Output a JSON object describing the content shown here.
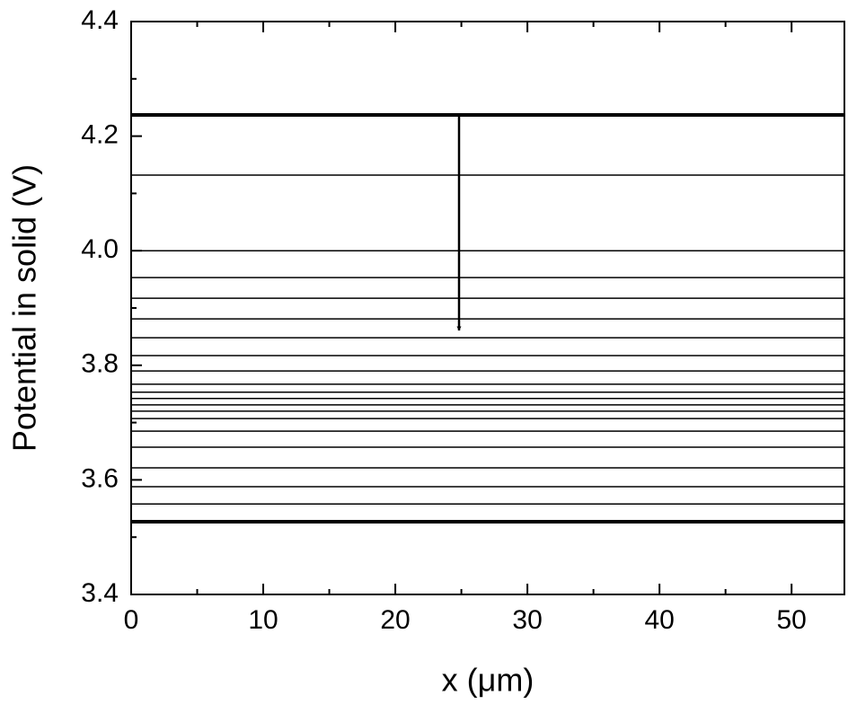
{
  "chart_data": {
    "type": "line",
    "xlabel": "x (μm)",
    "ylabel": "Potential in solid (V)",
    "x": [
      0,
      54
    ],
    "xlim": [
      0,
      54
    ],
    "xticks": [
      0,
      10,
      20,
      30,
      40,
      50
    ],
    "xminorticks": [
      5,
      15,
      25,
      35,
      45
    ],
    "ylim": [
      3.4,
      4.4
    ],
    "yticks": [
      3.4,
      3.6,
      3.8,
      {
        "value": 4.0,
        "label": "4.0"
      },
      4.2,
      4.4
    ],
    "yminorticks": [
      3.5,
      3.7,
      3.9,
      4.1,
      4.3
    ],
    "series": [
      {
        "color": "#000000",
        "linewidth": 4,
        "values": [
          4.237,
          4.237
        ]
      },
      {
        "color": "#000000",
        "linewidth": 1.5,
        "values": [
          4.132,
          4.132
        ]
      },
      {
        "color": "#000000",
        "linewidth": 1.5,
        "values": [
          4.0,
          4.0
        ]
      },
      {
        "color": "#000000",
        "linewidth": 1.5,
        "values": [
          3.953,
          3.953
        ]
      },
      {
        "color": "#000000",
        "linewidth": 1.5,
        "values": [
          3.917,
          3.917
        ]
      },
      {
        "color": "#000000",
        "linewidth": 1.5,
        "values": [
          3.881,
          3.881
        ]
      },
      {
        "color": "#000000",
        "linewidth": 1.5,
        "values": [
          3.848,
          3.848
        ]
      },
      {
        "color": "#000000",
        "linewidth": 1.5,
        "values": [
          3.817,
          3.817
        ]
      },
      {
        "color": "#000000",
        "linewidth": 1.5,
        "values": [
          3.79,
          3.79
        ]
      },
      {
        "color": "#000000",
        "linewidth": 1.5,
        "values": [
          3.767,
          3.767
        ]
      },
      {
        "color": "#000000",
        "linewidth": 1.5,
        "values": [
          3.753,
          3.753
        ]
      },
      {
        "color": "#000000",
        "linewidth": 1.5,
        "values": [
          3.742,
          3.742
        ]
      },
      {
        "color": "#000000",
        "linewidth": 1.5,
        "values": [
          3.731,
          3.731
        ]
      },
      {
        "color": "#000000",
        "linewidth": 1.5,
        "values": [
          3.72,
          3.72
        ]
      },
      {
        "color": "#000000",
        "linewidth": 1.5,
        "values": [
          3.707,
          3.707
        ]
      },
      {
        "color": "#000000",
        "linewidth": 1.5,
        "values": [
          3.685,
          3.685
        ]
      },
      {
        "color": "#000000",
        "linewidth": 1.5,
        "values": [
          3.657,
          3.657
        ]
      },
      {
        "color": "#000000",
        "linewidth": 1.5,
        "values": [
          3.621,
          3.621
        ]
      },
      {
        "color": "#000000",
        "linewidth": 1.5,
        "values": [
          3.588,
          3.588
        ]
      },
      {
        "color": "#000000",
        "linewidth": 1.5,
        "values": [
          3.558,
          3.558
        ]
      },
      {
        "color": "#000000",
        "linewidth": 4,
        "values": [
          3.527,
          3.527
        ]
      }
    ]
  }
}
